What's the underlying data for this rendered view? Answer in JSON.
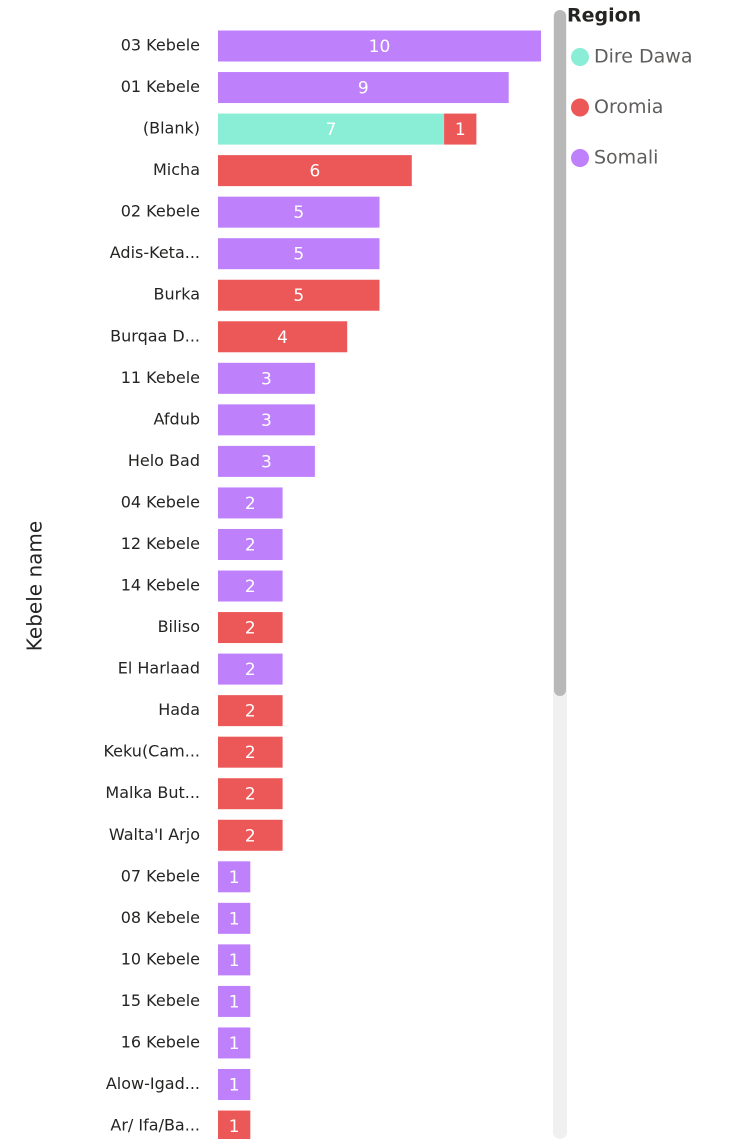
{
  "chart_data": {
    "type": "stacked_hbar",
    "y_axis_label": "Kebele name",
    "legend_title": "Region",
    "categories": [
      "03 Kebele",
      "01 Kebele",
      "(Blank)",
      "Micha",
      "02 Kebele",
      "Adis-Keta...",
      "Burka",
      "Burqaa D...",
      "11 Kebele",
      "Afdub",
      "Helo Bad",
      "04 Kebele",
      "12 Kebele",
      "14 Kebele",
      "Biliso",
      "El Harlaad",
      "Hada",
      "Keku(Cam...",
      "Malka But...",
      "Walta'I Arjo",
      "07 Kebele",
      "08 Kebele",
      "10 Kebele",
      "15 Kebele",
      "16 Kebele",
      "Alow-Igad...",
      "Ar/ Ifa/Ba..."
    ],
    "series": [
      {
        "name": "Dire Dawa",
        "color": "#8aedd5",
        "values": [
          null,
          null,
          7,
          null,
          null,
          null,
          null,
          null,
          null,
          null,
          null,
          null,
          null,
          null,
          null,
          null,
          null,
          null,
          null,
          null,
          null,
          null,
          null,
          null,
          null,
          null,
          null
        ]
      },
      {
        "name": "Oromia",
        "color": "#ec5858",
        "values": [
          null,
          null,
          1,
          6,
          null,
          null,
          5,
          4,
          null,
          null,
          null,
          null,
          null,
          null,
          2,
          null,
          2,
          2,
          2,
          2,
          null,
          null,
          null,
          null,
          null,
          null,
          1
        ]
      },
      {
        "name": "Somali",
        "color": "#bf80fc",
        "values": [
          10,
          9,
          null,
          null,
          5,
          5,
          null,
          null,
          3,
          3,
          3,
          2,
          2,
          2,
          null,
          2,
          null,
          null,
          null,
          null,
          1,
          1,
          1,
          1,
          1,
          1,
          null
        ]
      }
    ],
    "xlim": [
      0,
      10
    ],
    "legend_position": "top-right"
  }
}
